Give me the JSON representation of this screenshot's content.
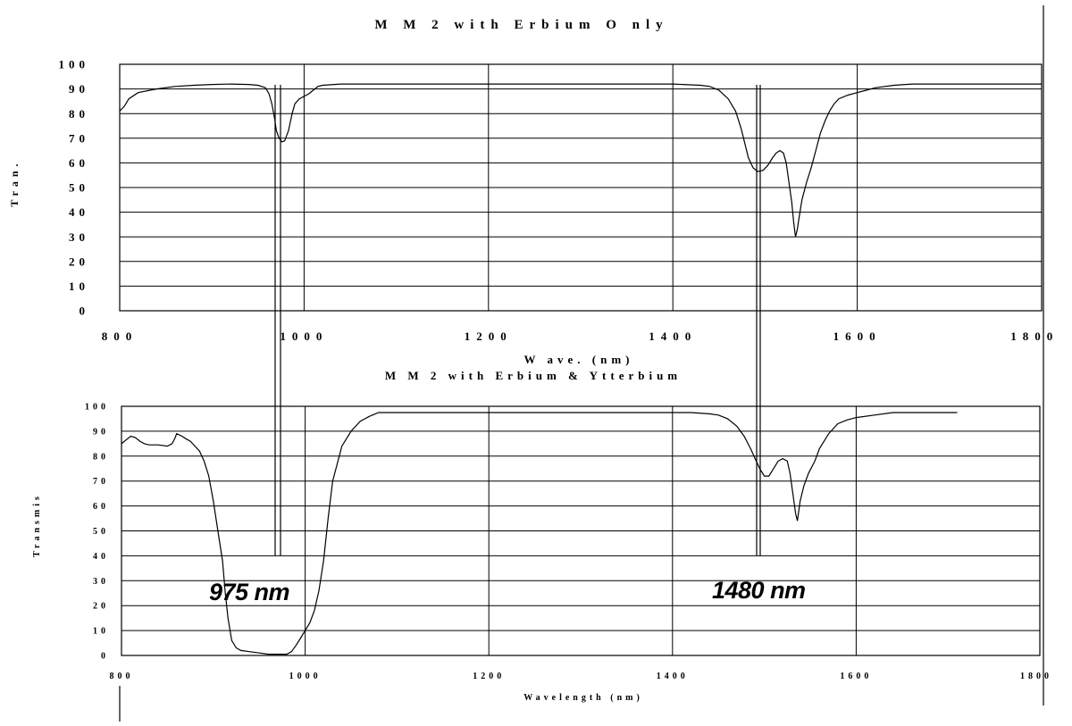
{
  "chart_data": [
    {
      "type": "line",
      "title": "M M 2 with Erbium O nly",
      "xlabel": "W ave. (nm)",
      "ylabel": "Tran.",
      "xlim": [
        800,
        1800
      ],
      "ylim": [
        0,
        100
      ],
      "grid": true,
      "x_ticks": [
        "800",
        "1000",
        "1200",
        "1400",
        "1600",
        "1800"
      ],
      "y_ticks": [
        "0",
        "10",
        "20",
        "30",
        "40",
        "50",
        "60",
        "70",
        "80",
        "90",
        "100"
      ],
      "series": [
        {
          "x": [
            800,
            805,
            810,
            820,
            840,
            860,
            880,
            900,
            920,
            940,
            950,
            958,
            962,
            965,
            968,
            970,
            973,
            976,
            979,
            983,
            987,
            990,
            995,
            1000,
            1005,
            1010,
            1015,
            1020,
            1040,
            1100,
            1200,
            1300,
            1400,
            1430,
            1440,
            1450,
            1460,
            1468,
            1474,
            1478,
            1482,
            1487,
            1492,
            1498,
            1503,
            1508,
            1512,
            1516,
            1520,
            1523,
            1526,
            1529,
            1531,
            1533,
            1535,
            1537,
            1540,
            1545,
            1550,
            1555,
            1560,
            1565,
            1570,
            1575,
            1580,
            1590,
            1600,
            1610,
            1620,
            1640,
            1660,
            1700,
            1750,
            1800
          ],
          "y": [
            81,
            83,
            86,
            88.5,
            90,
            91,
            91.5,
            91.8,
            92,
            91.8,
            91.5,
            90.5,
            88,
            84,
            78,
            73,
            70,
            68.5,
            69,
            73,
            80,
            84,
            86,
            87,
            88,
            89.5,
            91,
            91.5,
            92,
            92,
            92,
            92,
            92,
            91.5,
            91,
            89.5,
            86,
            81,
            74,
            68,
            62,
            58,
            56.5,
            57,
            59,
            62,
            64,
            65,
            64,
            60,
            52,
            44,
            36,
            30,
            33,
            38,
            45,
            52,
            58,
            65,
            72,
            77,
            81,
            84,
            86,
            87.5,
            88.5,
            89.5,
            90.5,
            91.5,
            92,
            92,
            92,
            92
          ]
        }
      ]
    },
    {
      "type": "line",
      "title": "M M 2 with Erbium & Ytterbium",
      "xlabel": "Wavelength (nm)",
      "ylabel": "Transmis",
      "xlim": [
        800,
        1800
      ],
      "ylim": [
        0,
        100
      ],
      "grid": true,
      "x_ticks": [
        "800",
        "1000",
        "1200",
        "1400",
        "1600",
        "1800"
      ],
      "y_ticks": [
        "0",
        "10",
        "20",
        "30",
        "40",
        "50",
        "60",
        "70",
        "80",
        "90",
        "100"
      ],
      "annotations": [
        "975 nm",
        "1480 nm"
      ],
      "series": [
        {
          "x": [
            800,
            805,
            810,
            815,
            820,
            825,
            830,
            840,
            850,
            855,
            858,
            860,
            863,
            866,
            870,
            875,
            880,
            885,
            890,
            895,
            900,
            905,
            910,
            913,
            916,
            920,
            925,
            930,
            940,
            950,
            960,
            970,
            975,
            980,
            985,
            990,
            995,
            1000,
            1005,
            1010,
            1015,
            1020,
            1025,
            1030,
            1040,
            1050,
            1060,
            1070,
            1080,
            1100,
            1200,
            1300,
            1400,
            1420,
            1440,
            1450,
            1460,
            1470,
            1478,
            1485,
            1490,
            1495,
            1500,
            1505,
            1510,
            1515,
            1520,
            1525,
            1528,
            1531,
            1534,
            1536,
            1539,
            1543,
            1548,
            1555,
            1560,
            1570,
            1580,
            1590,
            1600,
            1620,
            1640,
            1680,
            1710
          ],
          "y": [
            85,
            86.5,
            88,
            87.5,
            86,
            85,
            84.5,
            84.5,
            84,
            85,
            87,
            89,
            88.5,
            88,
            87,
            86,
            84,
            82,
            78,
            72,
            62,
            50,
            38,
            25,
            15,
            6,
            3,
            2,
            1.5,
            1,
            0.5,
            0.5,
            0.5,
            0.5,
            1.5,
            4,
            7,
            10,
            13,
            18,
            26,
            38,
            55,
            70,
            84,
            90,
            94,
            96,
            97.5,
            97.5,
            97.5,
            97.5,
            97.5,
            97.5,
            97,
            96.5,
            95,
            92,
            88,
            83,
            79,
            75,
            72,
            72,
            75,
            78,
            79,
            78,
            73,
            65,
            57,
            54,
            62,
            68,
            73,
            78,
            83,
            89,
            93,
            94.5,
            95.5,
            96.5,
            97.5,
            97.5,
            97.5
          ]
        }
      ]
    }
  ]
}
